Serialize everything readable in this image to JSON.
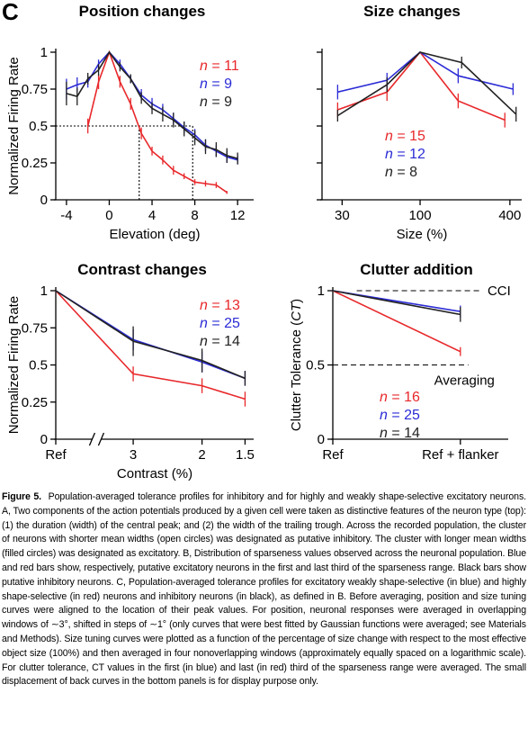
{
  "panel_letter": "C",
  "chart_data": [
    {
      "id": "position",
      "type": "line",
      "title": "Position changes",
      "xlabel": "Elevation (deg)",
      "ylabel": "Normalized Firing Rate",
      "xlim": [
        -5,
        13.5
      ],
      "ylim": [
        0,
        1
      ],
      "xticks": [
        -4,
        0,
        4,
        8,
        12
      ],
      "xtick_labels": [
        "-4",
        "0",
        "4",
        "8",
        "12"
      ],
      "yticks": [
        0,
        0.25,
        0.5,
        0.75,
        1
      ],
      "ytick_labels": [
        "0",
        "0.25",
        "0.5",
        "0.75",
        "1"
      ],
      "reference_lines": [
        {
          "type": "h",
          "y": 0.5,
          "x_from": -5,
          "x_to": 7.8
        },
        {
          "type": "v",
          "x": 2.8,
          "y_from": 0,
          "y_to": 0.5
        },
        {
          "type": "v",
          "x": 7.8,
          "y_from": 0,
          "y_to": 0.5
        }
      ],
      "legend": [
        {
          "prefix": "n",
          "text": " = 11",
          "color": "#e8282b"
        },
        {
          "prefix": "n",
          "text": " = 9",
          "color": "#2b2bd6"
        },
        {
          "prefix": "n",
          "text": " = 9",
          "color": "#222222"
        }
      ],
      "series": [
        {
          "color": "#e8282b",
          "x": [
            -2,
            -1,
            0,
            1,
            2,
            3,
            4,
            5,
            6,
            7,
            8,
            9,
            10,
            11
          ],
          "y": [
            0.5,
            0.8,
            1.0,
            0.8,
            0.65,
            0.45,
            0.33,
            0.27,
            0.2,
            0.16,
            0.12,
            0.11,
            0.1,
            0.05
          ],
          "err": [
            0.05,
            0.05,
            0,
            0.04,
            0.04,
            0.04,
            0.03,
            0.03,
            0.03,
            0.02,
            0.02,
            0.02,
            0.02,
            0.01
          ]
        },
        {
          "color": "#2b2bd6",
          "x": [
            -4,
            -3,
            -2,
            -1,
            0,
            1,
            2,
            3,
            4,
            5,
            6,
            7,
            8,
            9,
            10,
            11,
            12
          ],
          "y": [
            0.75,
            0.78,
            0.8,
            0.92,
            1.0,
            0.92,
            0.82,
            0.71,
            0.65,
            0.61,
            0.55,
            0.49,
            0.44,
            0.37,
            0.33,
            0.29,
            0.27
          ],
          "err": [
            0.07,
            0.05,
            0.04,
            0.03,
            0,
            0.03,
            0.03,
            0.04,
            0.04,
            0.04,
            0.04,
            0.04,
            0.04,
            0.04,
            0.04,
            0.04,
            0.03
          ]
        },
        {
          "color": "#222222",
          "x": [
            -4,
            -3,
            -2,
            -1,
            0,
            1,
            2,
            3,
            4,
            5,
            6,
            7,
            8,
            9,
            10,
            11,
            12
          ],
          "y": [
            0.72,
            0.7,
            0.82,
            0.88,
            1.0,
            0.9,
            0.82,
            0.69,
            0.62,
            0.58,
            0.54,
            0.48,
            0.42,
            0.36,
            0.34,
            0.3,
            0.28
          ],
          "err": [
            0.08,
            0.06,
            0.04,
            0.04,
            0,
            0.03,
            0.03,
            0.04,
            0.04,
            0.05,
            0.05,
            0.05,
            0.05,
            0.05,
            0.05,
            0.05,
            0.04
          ]
        }
      ]
    },
    {
      "id": "size",
      "type": "line",
      "title": "Size changes",
      "xlabel": "Size (%)",
      "ylabel": "",
      "xscale": "log",
      "xlim": [
        22,
        480
      ],
      "ylim": [
        0,
        1
      ],
      "xticks": [
        30,
        100,
        400
      ],
      "xtick_labels": [
        "30",
        "100",
        "400"
      ],
      "yticks": [
        0,
        0.25,
        0.5,
        0.75,
        1
      ],
      "ytick_labels": [
        "",
        "",
        "",
        "",
        ""
      ],
      "reference_lines": [],
      "legend": [
        {
          "prefix": "n",
          "text": " = 15",
          "color": "#e8282b"
        },
        {
          "prefix": "n",
          "text": " = 12",
          "color": "#2b2bd6"
        },
        {
          "prefix": "n",
          "text": " = 8",
          "color": "#222222"
        }
      ],
      "series": [
        {
          "color": "#e8282b",
          "x": [
            28,
            60,
            100,
            180,
            370
          ],
          "y": [
            0.61,
            0.73,
            1.0,
            0.67,
            0.54
          ],
          "err": [
            0.05,
            0.06,
            0,
            0.05,
            0.05
          ]
        },
        {
          "color": "#2b2bd6",
          "x": [
            28,
            60,
            100,
            180,
            420
          ],
          "y": [
            0.73,
            0.81,
            1.0,
            0.84,
            0.75
          ],
          "err": [
            0.05,
            0.05,
            0,
            0.05,
            0.04
          ]
        },
        {
          "color": "#222222",
          "x": [
            28,
            60,
            100,
            190,
            440
          ],
          "y": [
            0.57,
            0.78,
            1.0,
            0.93,
            0.58
          ],
          "err": [
            0.04,
            0.05,
            0,
            0.04,
            0.05
          ]
        }
      ]
    },
    {
      "id": "contrast",
      "type": "line",
      "title": "Contrast changes",
      "xlabel": "Contrast (%)",
      "ylabel": "Normalized Firing Rate",
      "xlim": [
        0,
        4.6
      ],
      "ylim": [
        0,
        1
      ],
      "xticks": [
        0,
        1.8,
        3.4,
        4.4
      ],
      "xtick_labels": [
        "Ref",
        "3",
        "2",
        "1.5"
      ],
      "yticks": [
        0,
        0.25,
        0.5,
        0.75,
        1
      ],
      "ytick_labels": [
        "0",
        "0.25",
        "0.5",
        "0.75",
        "1"
      ],
      "axis_break_at": 0.95,
      "reference_lines": [],
      "legend": [
        {
          "prefix": "n",
          "text": " = 13",
          "color": "#e8282b"
        },
        {
          "prefix": "n",
          "text": " = 25",
          "color": "#2b2bd6"
        },
        {
          "prefix": "n",
          "text": " = 14",
          "color": "#222222"
        }
      ],
      "series": [
        {
          "color": "#e8282b",
          "x": [
            0,
            1.8,
            3.4,
            4.4
          ],
          "y": [
            1.0,
            0.44,
            0.36,
            0.27
          ],
          "err": [
            0,
            0.05,
            0.05,
            0.05
          ]
        },
        {
          "color": "#2b2bd6",
          "x": [
            0,
            1.8,
            3.4,
            4.4
          ],
          "y": [
            1.0,
            0.67,
            0.52,
            0.41
          ],
          "err": [
            0,
            0.07,
            0.07,
            0.05
          ]
        },
        {
          "color": "#222222",
          "x": [
            0,
            1.8,
            3.4,
            4.4
          ],
          "y": [
            1.0,
            0.66,
            0.53,
            0.41
          ],
          "err": [
            0,
            0.1,
            0.08,
            0.05
          ]
        }
      ]
    },
    {
      "id": "clutter",
      "type": "line",
      "title": "Clutter addition",
      "xlabel": "",
      "ylabel": "Clutter Tolerance (CT)",
      "ylabel_parts": [
        "Clutter Tolerance (",
        "CT",
        ")"
      ],
      "xlim": [
        0,
        4.4
      ],
      "ylim": [
        0,
        1
      ],
      "xticks": [
        0,
        3.2
      ],
      "xtick_labels": [
        "Ref",
        "Ref + flanker"
      ],
      "yticks": [
        0,
        0.5,
        1
      ],
      "ytick_labels": [
        "0",
        "0.5",
        "1"
      ],
      "reference_lines": [
        {
          "type": "h",
          "y": 1.0,
          "x_from": 0.6,
          "x_to": 3.7,
          "label": "CCI"
        },
        {
          "type": "h",
          "y": 0.5,
          "x_from": 0,
          "x_to": 3.4,
          "label": "Averaging"
        }
      ],
      "legend": [
        {
          "prefix": "n",
          "text": " = 16",
          "color": "#e8282b"
        },
        {
          "prefix": "n",
          "text": " = 25",
          "color": "#2b2bd6"
        },
        {
          "prefix": "n",
          "text": " = 14",
          "color": "#222222"
        }
      ],
      "series": [
        {
          "color": "#e8282b",
          "x": [
            0,
            3.2
          ],
          "y": [
            1.0,
            0.59
          ],
          "err": [
            0,
            0.03
          ]
        },
        {
          "color": "#2b2bd6",
          "x": [
            0,
            3.2
          ],
          "y": [
            1.0,
            0.86
          ],
          "err": [
            0,
            0.04
          ]
        },
        {
          "color": "#222222",
          "x": [
            0,
            3.2
          ],
          "y": [
            1.0,
            0.84
          ],
          "err": [
            0,
            0.05
          ]
        }
      ]
    }
  ],
  "caption": {
    "label": "Figure 5.",
    "text": "Population-averaged tolerance profiles for inhibitory and for highly and weakly shape-selective excitatory neurons. A, Two components of the action potentials produced by a given cell were taken as distinctive features of the neuron type (top): (1) the duration (width) of the central peak; and (2) the width of the trailing trough. Across the recorded population, the cluster of neurons with shorter mean widths (open circles) was designated as putative inhibitory. The cluster with longer mean widths (filled circles) was designated as excitatory. B, Distribution of sparseness values observed across the neuronal population. Blue and red bars show, respectively, putative excitatory neurons in the first and last third of the sparseness range. Black bars show putative inhibitory neurons. C, Population-averaged tolerance profiles for excitatory weakly shape-selective (in blue) and highly shape-selective (in red) neurons and inhibitory neurons (in black), as defined in B. Before averaging, position and size tuning curves were aligned to the location of their peak values. For position, neuronal responses were averaged in overlapping windows of ∼3°, shifted in steps of ∼1° (only curves that were best fitted by Gaussian functions were averaged; see Materials and Methods). Size tuning curves were plotted as a function of the percentage of size change with respect to the most effective object size (100%) and then averaged in four nonoverlapping windows (approximately equally spaced on a logarithmic scale). For clutter tolerance, CT values in the first (in blue) and last (in red) third of the sparseness range were averaged. The small displacement of back curves in the bottom panels is for display purpose only."
  }
}
